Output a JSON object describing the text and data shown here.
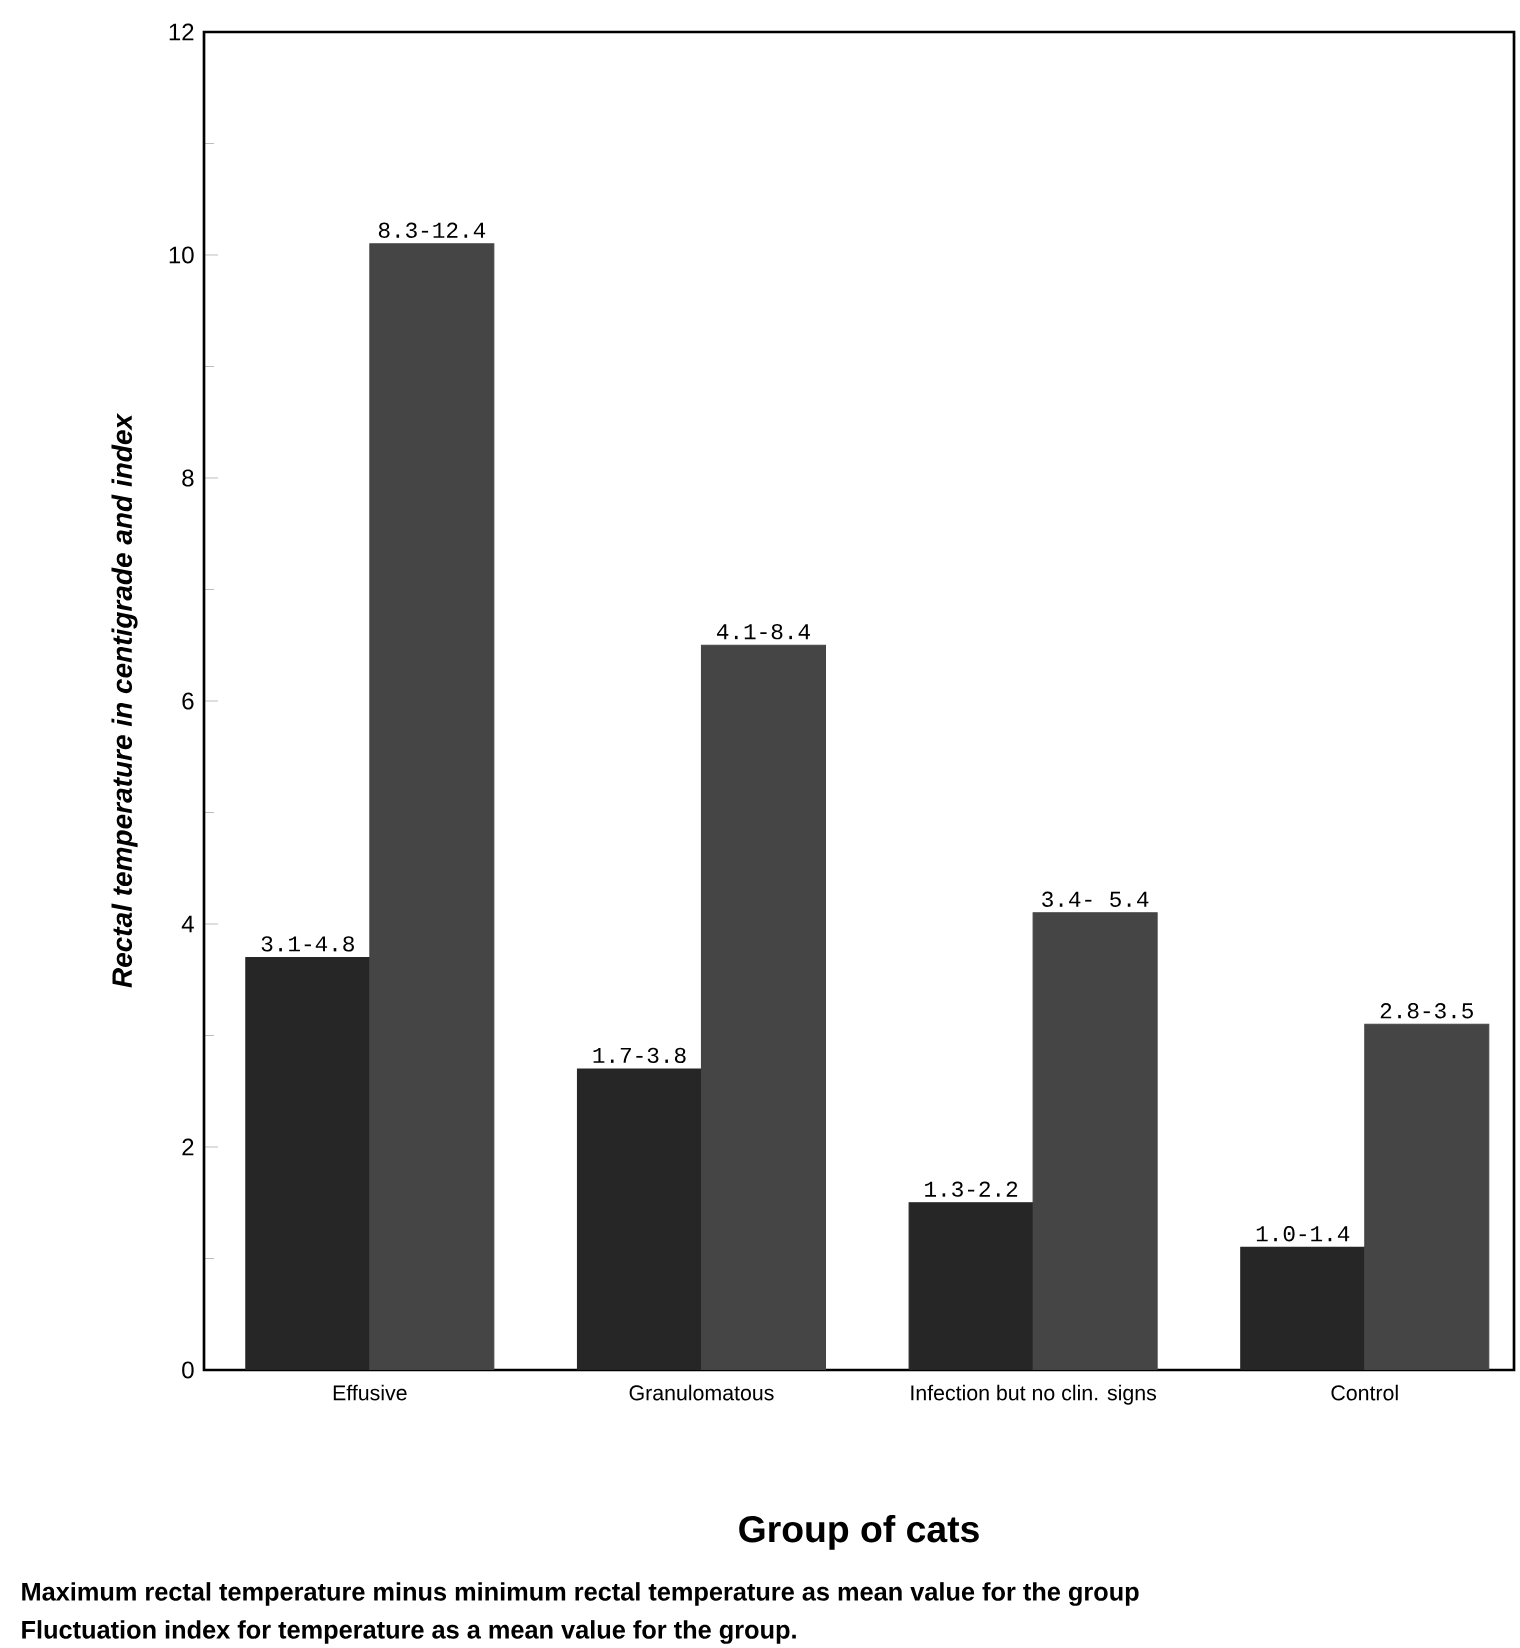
{
  "chart_data": {
    "type": "bar",
    "xlabel": "Group of cats",
    "ylabel": "Rectal temperature in centigrade and index",
    "categories": [
      "Effusive",
      "Granulomatous",
      "Infection but no clin. signs",
      "Control"
    ],
    "series": [
      {
        "color": "#262626",
        "values": [
          3.7,
          2.7,
          1.5,
          1.1
        ],
        "value_labels": [
          "3.1-4.8",
          "1.7-3.8",
          "1.3-2.2",
          "1.0-1.4"
        ]
      },
      {
        "color": "#454545",
        "values": [
          10.1,
          6.5,
          4.1,
          3.1
        ],
        "value_labels": [
          "8.3-12.4",
          "4.1-8.4",
          "3.4- 5.4",
          "2.8-3.5"
        ]
      }
    ],
    "ylim": [
      0,
      12
    ],
    "yticks": [
      0,
      2,
      4,
      6,
      8,
      10,
      12
    ],
    "annotations": [
      "Maximum rectal temperature minus minimum rectal temperature as mean value for the group",
      "Fluctuation index for temperature as a mean value for the group."
    ]
  }
}
